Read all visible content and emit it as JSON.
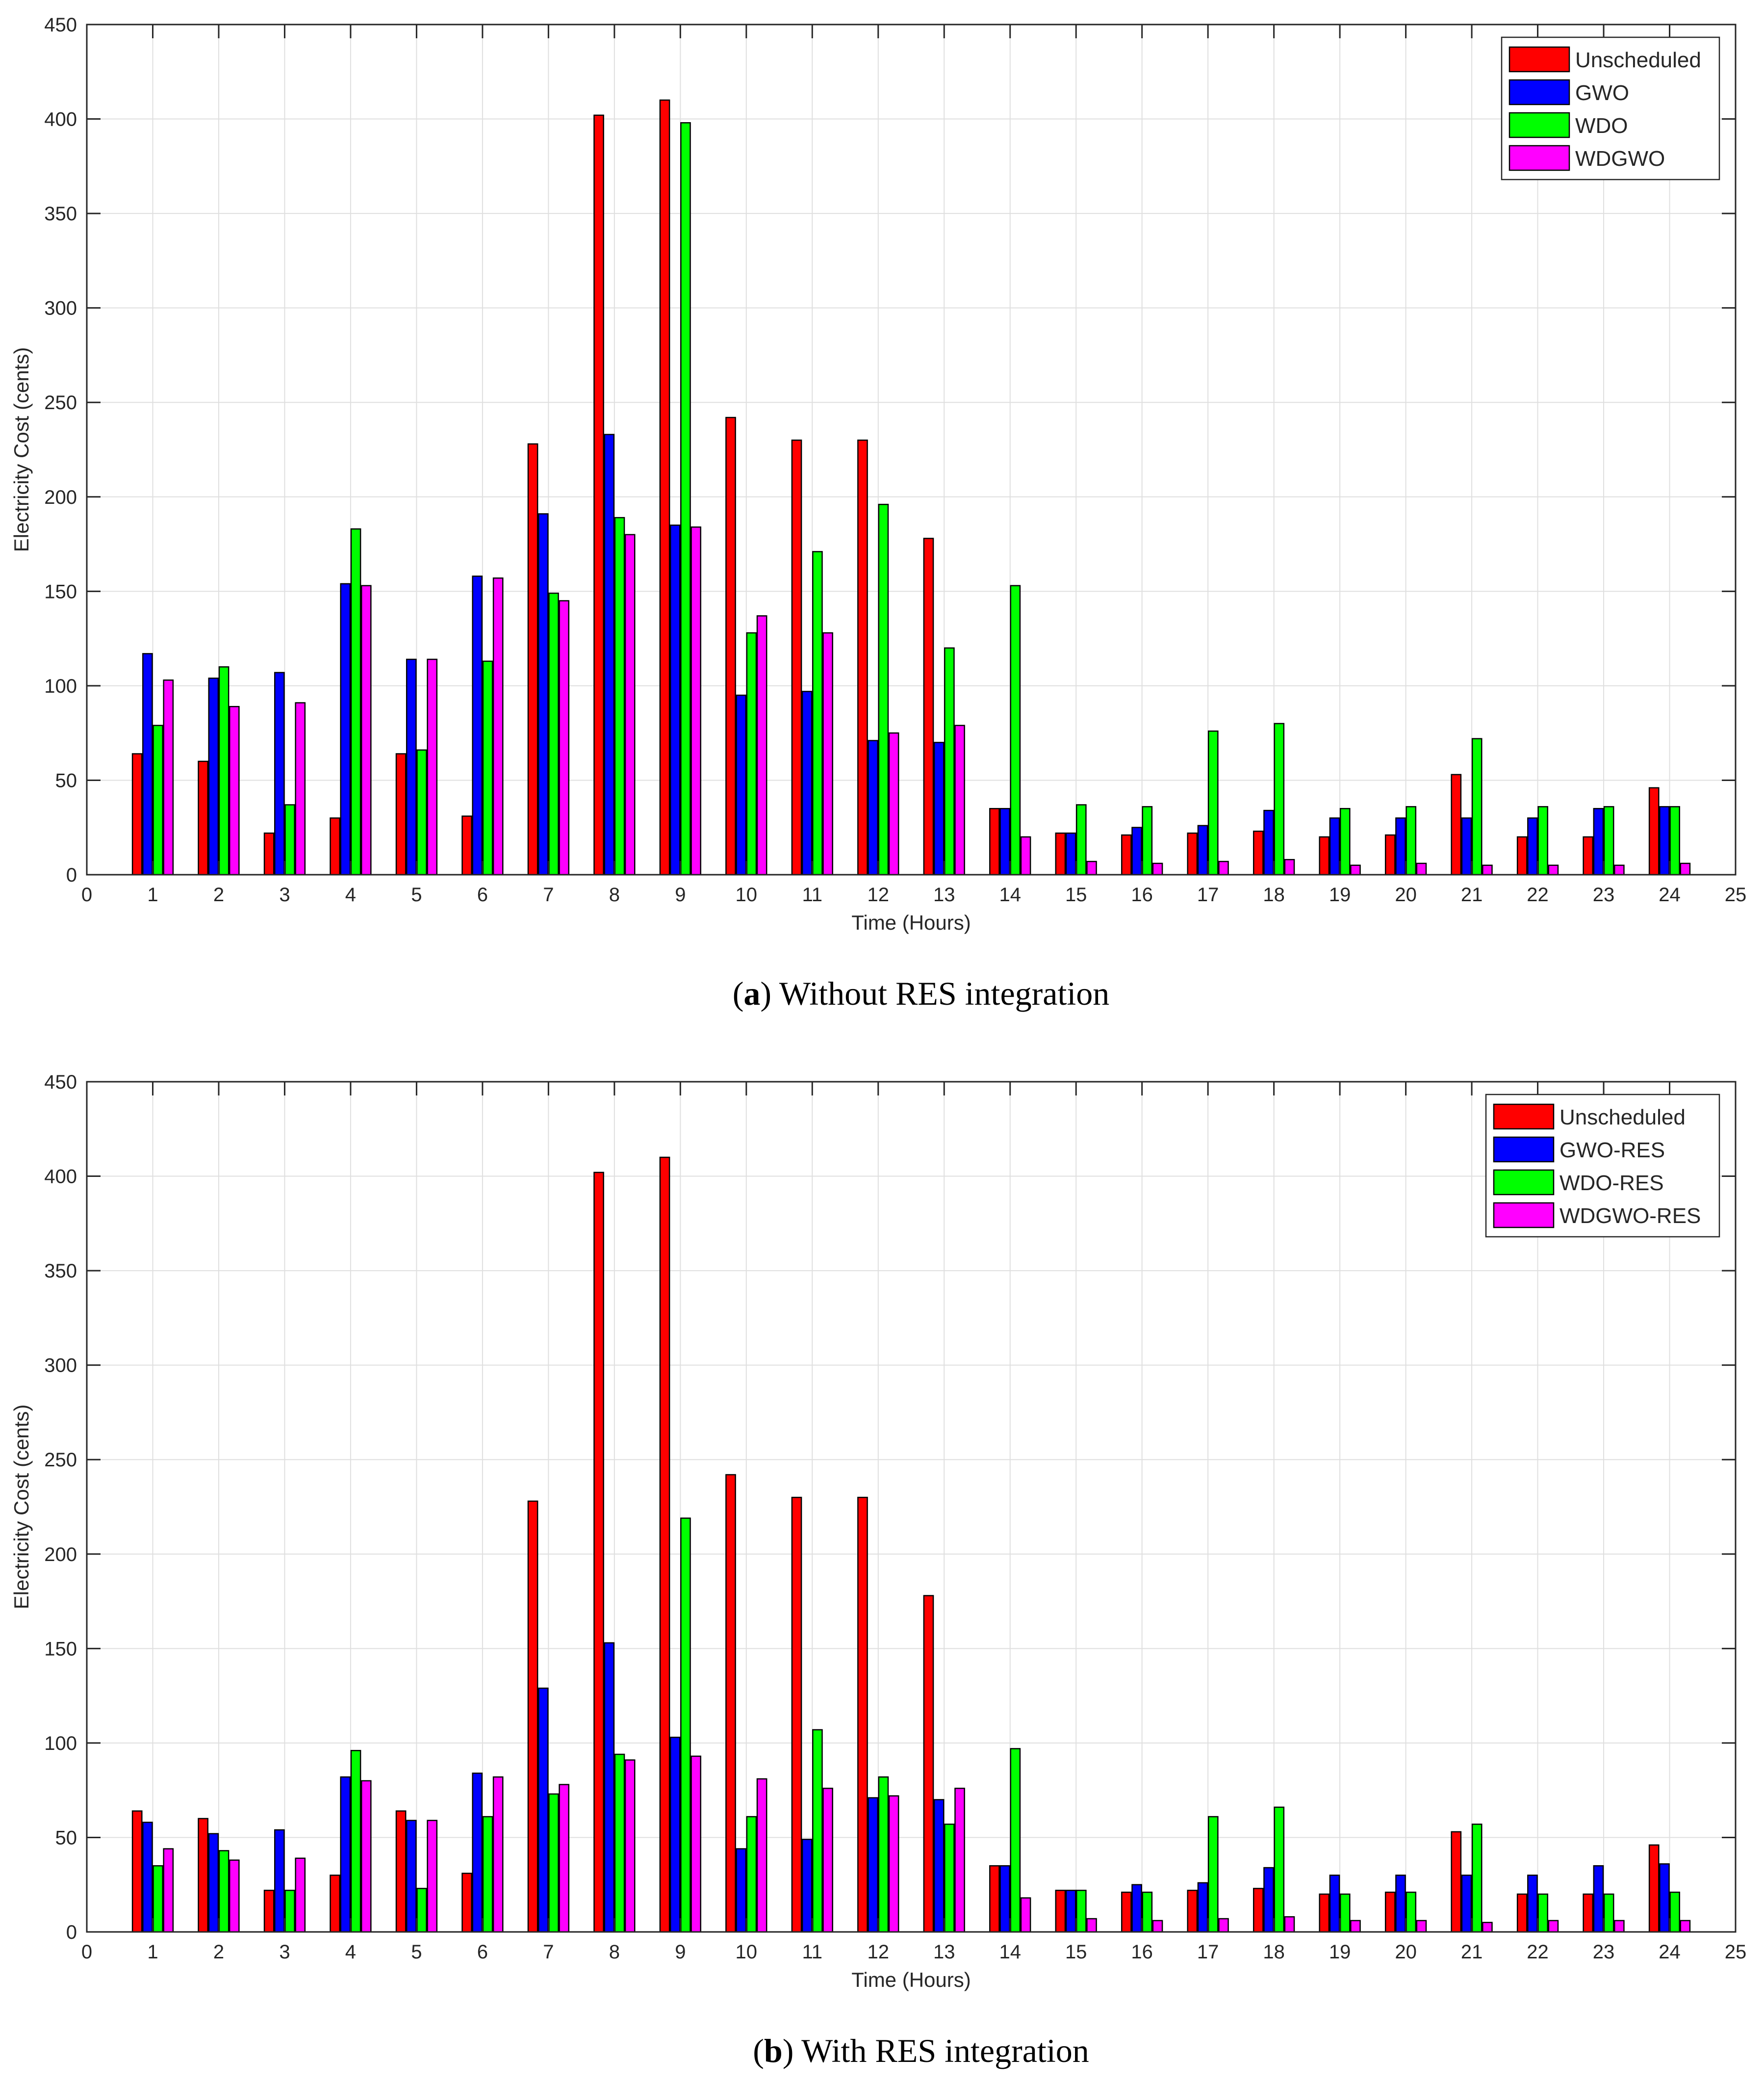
{
  "chart_data": [
    {
      "type": "bar",
      "title": "",
      "caption_letter": "a",
      "caption_text": " Without RES integration",
      "xlabel": "Time (Hours)",
      "ylabel": "Electricity Cost (cents)",
      "xlim": [
        0,
        25
      ],
      "ylim": [
        0,
        450
      ],
      "xticks": [
        0,
        1,
        2,
        3,
        4,
        5,
        6,
        7,
        8,
        9,
        10,
        11,
        12,
        13,
        14,
        15,
        16,
        17,
        18,
        19,
        20,
        21,
        22,
        23,
        24,
        25
      ],
      "yticks": [
        0,
        50,
        100,
        150,
        200,
        250,
        300,
        350,
        400,
        450
      ],
      "grid": true,
      "legend_position": "top-right",
      "categories": [
        1,
        2,
        3,
        4,
        5,
        6,
        7,
        8,
        9,
        10,
        11,
        12,
        13,
        14,
        15,
        16,
        17,
        18,
        19,
        20,
        21,
        22,
        23,
        24
      ],
      "series": [
        {
          "name": "Unscheduled",
          "color": "#ff0000",
          "values": [
            64,
            60,
            22,
            30,
            64,
            31,
            228,
            402,
            410,
            242,
            230,
            230,
            178,
            35,
            22,
            21,
            22,
            23,
            20,
            21,
            53,
            20,
            20,
            46
          ]
        },
        {
          "name": "GWO",
          "color": "#0000ff",
          "values": [
            117,
            104,
            107,
            154,
            114,
            158,
            191,
            233,
            185,
            95,
            97,
            71,
            70,
            35,
            22,
            25,
            26,
            34,
            30,
            30,
            30,
            30,
            35,
            36
          ]
        },
        {
          "name": "WDO",
          "color": "#00ff00",
          "values": [
            79,
            110,
            37,
            183,
            66,
            113,
            149,
            189,
            398,
            128,
            171,
            196,
            120,
            153,
            37,
            36,
            76,
            80,
            35,
            36,
            72,
            36,
            36,
            36
          ]
        },
        {
          "name": "WDGWO",
          "color": "#ff00ff",
          "values": [
            103,
            89,
            91,
            153,
            114,
            157,
            145,
            180,
            184,
            137,
            128,
            75,
            79,
            20,
            7,
            6,
            7,
            8,
            5,
            6,
            5,
            5,
            5,
            6
          ]
        }
      ]
    },
    {
      "type": "bar",
      "title": "",
      "caption_letter": "b",
      "caption_text": " With RES integration",
      "xlabel": "Time (Hours)",
      "ylabel": "Electricity Cost (cents)",
      "xlim": [
        0,
        25
      ],
      "ylim": [
        0,
        450
      ],
      "xticks": [
        0,
        1,
        2,
        3,
        4,
        5,
        6,
        7,
        8,
        9,
        10,
        11,
        12,
        13,
        14,
        15,
        16,
        17,
        18,
        19,
        20,
        21,
        22,
        23,
        24,
        25
      ],
      "yticks": [
        0,
        50,
        100,
        150,
        200,
        250,
        300,
        350,
        400,
        450
      ],
      "grid": true,
      "legend_position": "top-right",
      "categories": [
        1,
        2,
        3,
        4,
        5,
        6,
        7,
        8,
        9,
        10,
        11,
        12,
        13,
        14,
        15,
        16,
        17,
        18,
        19,
        20,
        21,
        22,
        23,
        24
      ],
      "series": [
        {
          "name": "Unscheduled",
          "color": "#ff0000",
          "values": [
            64,
            60,
            22,
            30,
            64,
            31,
            228,
            402,
            410,
            242,
            230,
            230,
            178,
            35,
            22,
            21,
            22,
            23,
            20,
            21,
            53,
            20,
            20,
            46
          ]
        },
        {
          "name": "GWO-RES",
          "color": "#0000ff",
          "values": [
            58,
            52,
            54,
            82,
            59,
            84,
            129,
            153,
            103,
            44,
            49,
            71,
            70,
            35,
            22,
            25,
            26,
            34,
            30,
            30,
            30,
            30,
            35,
            36
          ]
        },
        {
          "name": "WDO-RES",
          "color": "#00ff00",
          "values": [
            35,
            43,
            22,
            96,
            23,
            61,
            73,
            94,
            219,
            61,
            107,
            82,
            57,
            97,
            22,
            21,
            61,
            66,
            20,
            21,
            57,
            20,
            20,
            21
          ]
        },
        {
          "name": "WDGWO-RES",
          "color": "#ff00ff",
          "values": [
            44,
            38,
            39,
            80,
            59,
            82,
            78,
            91,
            93,
            81,
            76,
            72,
            76,
            18,
            7,
            6,
            7,
            8,
            6,
            6,
            5,
            6,
            6,
            6
          ]
        }
      ]
    }
  ]
}
